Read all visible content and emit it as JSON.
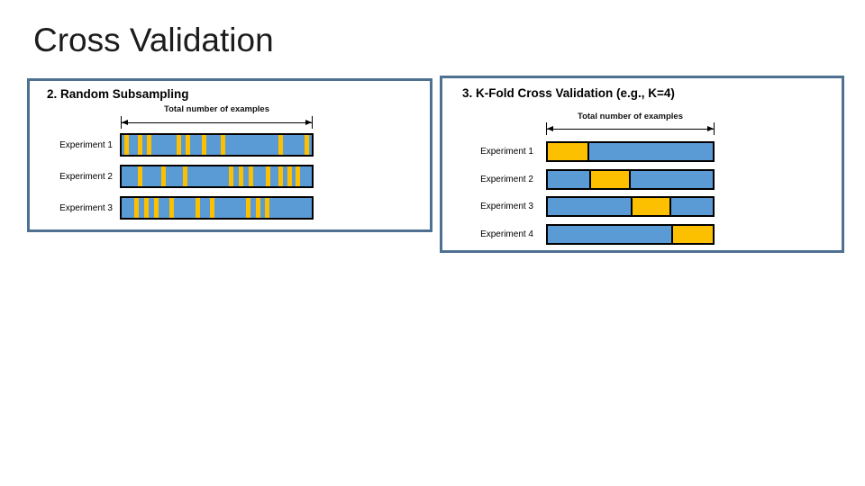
{
  "slide_title": "Cross Validation",
  "colors": {
    "bar_blue": "#5B9BD5",
    "bar_yellow": "#FDC000",
    "panel_border": "#4E7191",
    "bar_border": "#000000",
    "slide_background": "#FFFFFF",
    "title_text": "#1C1C1C"
  },
  "panels": [
    {
      "title": "2. Random Subsampling",
      "axis_label": "Total number of examples",
      "experiments": [
        {
          "label": "Experiment 1",
          "type": "random_stripes",
          "stripe_positions": [
            0.015,
            0.085,
            0.135,
            0.29,
            0.335,
            0.42,
            0.52,
            0.825,
            0.96
          ]
        },
        {
          "label": "Experiment 2",
          "type": "random_stripes",
          "stripe_positions": [
            0.087,
            0.21,
            0.32,
            0.565,
            0.615,
            0.67,
            0.76,
            0.825,
            0.87,
            0.915
          ]
        },
        {
          "label": "Experiment 3",
          "type": "random_stripes",
          "stripe_positions": [
            0.065,
            0.12,
            0.17,
            0.25,
            0.39,
            0.465,
            0.655,
            0.705,
            0.755
          ]
        }
      ]
    },
    {
      "title": "3. K-Fold Cross Validation (e.g., K=4)",
      "axis_label": "Total number of examples",
      "experiments": [
        {
          "label": "Experiment 1",
          "type": "fold",
          "fold_start": 0,
          "fold_end": 0.25
        },
        {
          "label": "Experiment 2",
          "type": "fold",
          "fold_start": 0.25,
          "fold_end": 0.5
        },
        {
          "label": "Experiment 3",
          "type": "fold",
          "fold_start": 0.5,
          "fold_end": 0.75
        },
        {
          "label": "Experiment 4",
          "type": "fold",
          "fold_start": 0.75,
          "fold_end": 1
        }
      ]
    }
  ]
}
